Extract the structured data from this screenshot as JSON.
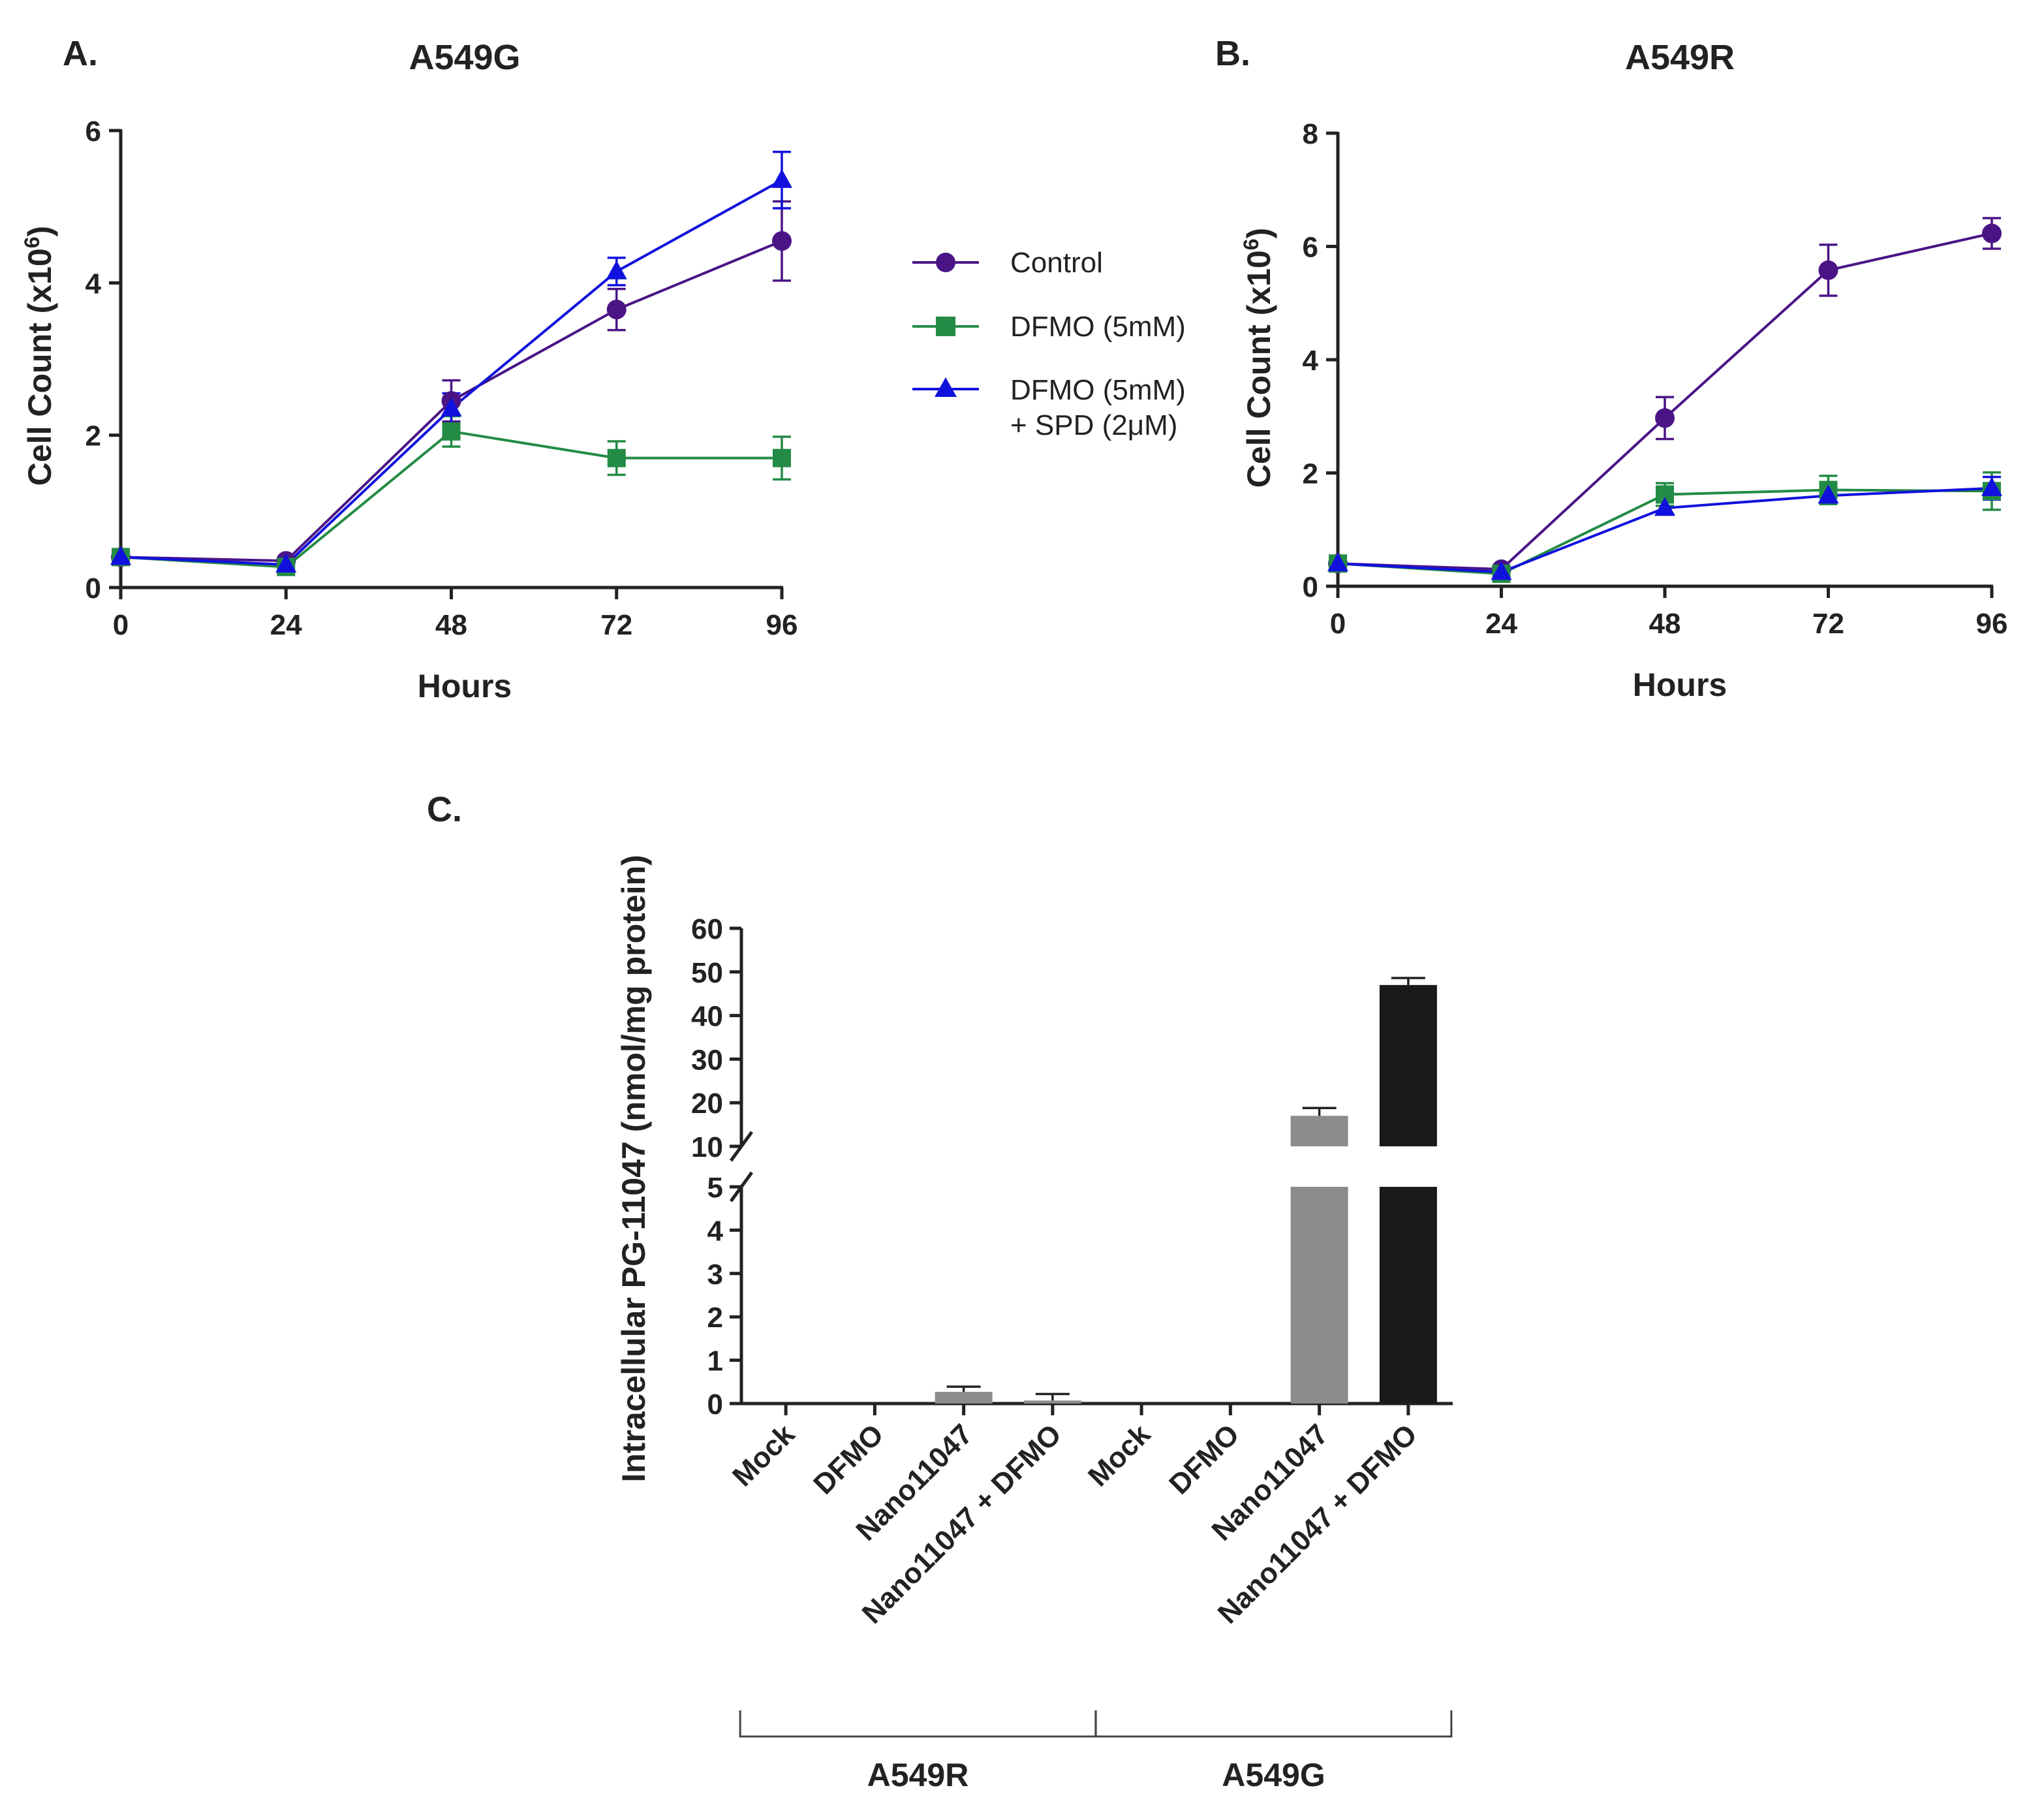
{
  "panel_labels": {
    "a": "A.",
    "b": "B.",
    "c": "C."
  },
  "legend": {
    "control": "Control",
    "dfmo": "DFMO (5mM)",
    "dfmo_spd_line1": "DFMO (5mM)",
    "dfmo_spd_line2": "+ SPD (2μM)"
  },
  "colors": {
    "control": "#4a1486",
    "dfmo": "#238b45",
    "dfmo_spd": "#1111dd",
    "bar_gray": "#8c8c8c",
    "bar_black": "#1a1a1a",
    "axis": "#222222"
  },
  "chart_data": [
    {
      "type": "line",
      "panel": "A",
      "title": "A549G",
      "xlabel": "Hours",
      "ylabel": "Cell Count (x10",
      "ylabel_sup": "6",
      "ylabel_end": ")",
      "x": [
        0,
        24,
        48,
        72,
        96
      ],
      "x_ticks": [
        "0",
        "24",
        "48",
        "72",
        "96"
      ],
      "y_ticks": [
        "0",
        "2",
        "4",
        "6"
      ],
      "xlim": [
        0,
        96
      ],
      "ylim": [
        0,
        6
      ],
      "series": [
        {
          "name": "Control",
          "key": "control",
          "marker": "circle",
          "values": [
            0.4,
            0.35,
            2.45,
            3.65,
            4.55
          ],
          "errors": [
            0.05,
            0.05,
            0.27,
            0.27,
            0.52
          ]
        },
        {
          "name": "DFMO (5mM)",
          "key": "dfmo",
          "marker": "square",
          "values": [
            0.4,
            0.27,
            2.05,
            1.7,
            1.7
          ],
          "errors": [
            0.05,
            0.05,
            0.2,
            0.22,
            0.28
          ]
        },
        {
          "name": "DFMO (5mM) + SPD (2μM)",
          "key": "dfmo_spd",
          "marker": "triangle",
          "values": [
            0.4,
            0.3,
            2.35,
            4.15,
            5.35
          ],
          "errors": [
            0.05,
            0.05,
            0.2,
            0.18,
            0.37
          ]
        }
      ]
    },
    {
      "type": "line",
      "panel": "B",
      "title": "A549R",
      "xlabel": "Hours",
      "ylabel": "Cell Count (x10",
      "ylabel_sup": "6",
      "ylabel_end": ")",
      "x": [
        0,
        24,
        48,
        72,
        96
      ],
      "x_ticks": [
        "0",
        "24",
        "48",
        "72",
        "96"
      ],
      "y_ticks": [
        "0",
        "2",
        "4",
        "6",
        "8"
      ],
      "xlim": [
        0,
        96
      ],
      "ylim": [
        0,
        8
      ],
      "series": [
        {
          "name": "Control",
          "key": "control",
          "marker": "circle",
          "values": [
            0.4,
            0.3,
            2.97,
            5.58,
            6.23
          ],
          "errors": [
            0.05,
            0.05,
            0.37,
            0.45,
            0.27
          ]
        },
        {
          "name": "DFMO (5mM)",
          "key": "dfmo",
          "marker": "square",
          "values": [
            0.4,
            0.22,
            1.62,
            1.7,
            1.68
          ],
          "errors": [
            0.05,
            0.05,
            0.2,
            0.25,
            0.33
          ]
        },
        {
          "name": "DFMO (5mM) + SPD (2μM)",
          "key": "dfmo_spd",
          "marker": "triangle",
          "values": [
            0.4,
            0.25,
            1.38,
            1.6,
            1.73
          ],
          "errors": [
            0.05,
            0.05,
            0.1,
            0.12,
            0.2
          ]
        }
      ]
    },
    {
      "type": "bar",
      "panel": "C",
      "ylabel": "Intracellular PG-11047 (nmol/mg protein)",
      "broken_axis": true,
      "lower_range": [
        0,
        5
      ],
      "upper_range": [
        10,
        60
      ],
      "y_ticks_lower": [
        "0",
        "1",
        "2",
        "3",
        "4",
        "5"
      ],
      "y_ticks_upper": [
        "10",
        "20",
        "30",
        "40",
        "50",
        "60"
      ],
      "categories": [
        "Mock",
        "DFMO",
        "Nano11047",
        "Nano11047 + DFMO",
        "Mock",
        "DFMO",
        "Nano11047",
        "Nano11047 + DFMO"
      ],
      "values": [
        0,
        0,
        0.27,
        0.07,
        0,
        0,
        17,
        47
      ],
      "errors": [
        0,
        0,
        0.12,
        0.15,
        0,
        0,
        1.8,
        1.6
      ],
      "bar_color_keys": [
        "bar_gray",
        "bar_gray",
        "bar_gray",
        "bar_gray",
        "bar_gray",
        "bar_gray",
        "bar_gray",
        "bar_black"
      ],
      "groups": [
        {
          "label": "A549R",
          "start": 0,
          "end": 3
        },
        {
          "label": "A549G",
          "start": 4,
          "end": 7
        }
      ]
    }
  ]
}
